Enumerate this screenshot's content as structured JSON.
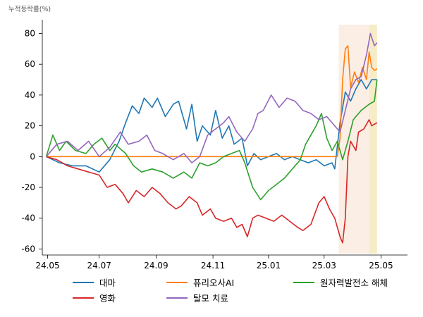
{
  "chart_data": {
    "type": "line",
    "ylabel": "누적등락률(%)",
    "ylim": [
      -63,
      88
    ],
    "yticks": [
      -60,
      -40,
      -20,
      0,
      20,
      40,
      60,
      80
    ],
    "xtick_labels": [
      "24.05",
      "24.07",
      "24.09",
      "24.11",
      "25.01",
      "25.03",
      "25.05"
    ],
    "xtick_positions": [
      1,
      40,
      83,
      126,
      168,
      210,
      253
    ],
    "xlim": [
      -3,
      273
    ],
    "legend_position": "bottom",
    "highlight_bands": [
      {
        "start": 221,
        "end": 244,
        "color": "#fbeee4"
      },
      {
        "start": 244,
        "end": 250,
        "color": "#f6ecc8"
      }
    ],
    "series": [
      {
        "name": "대마",
        "color": "#1f77b4",
        "points": [
          [
            0,
            0
          ],
          [
            10,
            -4
          ],
          [
            20,
            -6
          ],
          [
            30,
            -6
          ],
          [
            40,
            -10
          ],
          [
            48,
            -2
          ],
          [
            55,
            10
          ],
          [
            60,
            22
          ],
          [
            65,
            33
          ],
          [
            70,
            28
          ],
          [
            74,
            38
          ],
          [
            80,
            32
          ],
          [
            84,
            38
          ],
          [
            90,
            26
          ],
          [
            96,
            34
          ],
          [
            100,
            36
          ],
          [
            106,
            18
          ],
          [
            110,
            34
          ],
          [
            114,
            10
          ],
          [
            118,
            20
          ],
          [
            124,
            14
          ],
          [
            128,
            30
          ],
          [
            133,
            12
          ],
          [
            138,
            20
          ],
          [
            142,
            8
          ],
          [
            148,
            12
          ],
          [
            152,
            -6
          ],
          [
            157,
            2
          ],
          [
            162,
            -2
          ],
          [
            168,
            0
          ],
          [
            174,
            2
          ],
          [
            180,
            -2
          ],
          [
            186,
            0
          ],
          [
            192,
            -2
          ],
          [
            198,
            -4
          ],
          [
            204,
            -2
          ],
          [
            210,
            -6
          ],
          [
            216,
            -4
          ],
          [
            218,
            -8
          ],
          [
            222,
            22
          ],
          [
            226,
            42
          ],
          [
            230,
            36
          ],
          [
            234,
            44
          ],
          [
            238,
            50
          ],
          [
            242,
            44
          ],
          [
            246,
            50
          ],
          [
            250,
            50
          ]
        ]
      },
      {
        "name": "퓨리오사AI",
        "color": "#ff7f0e",
        "points": [
          [
            0,
            0
          ],
          [
            220,
            0
          ],
          [
            222,
            12
          ],
          [
            224,
            50
          ],
          [
            226,
            70
          ],
          [
            228,
            72
          ],
          [
            230,
            45
          ],
          [
            233,
            55
          ],
          [
            236,
            48
          ],
          [
            239,
            58
          ],
          [
            242,
            50
          ],
          [
            244,
            68
          ],
          [
            246,
            58
          ],
          [
            248,
            56
          ],
          [
            250,
            57
          ]
        ]
      },
      {
        "name": "원자력발전소 해체",
        "color": "#2ca02c",
        "points": [
          [
            0,
            0
          ],
          [
            5,
            14
          ],
          [
            10,
            4
          ],
          [
            15,
            10
          ],
          [
            22,
            4
          ],
          [
            30,
            2
          ],
          [
            36,
            8
          ],
          [
            42,
            12
          ],
          [
            48,
            4
          ],
          [
            52,
            8
          ],
          [
            60,
            2
          ],
          [
            66,
            -6
          ],
          [
            72,
            -10
          ],
          [
            80,
            -8
          ],
          [
            88,
            -10
          ],
          [
            96,
            -14
          ],
          [
            104,
            -10
          ],
          [
            110,
            -14
          ],
          [
            116,
            -4
          ],
          [
            122,
            -6
          ],
          [
            128,
            -4
          ],
          [
            134,
            0
          ],
          [
            140,
            2
          ],
          [
            146,
            4
          ],
          [
            150,
            -4
          ],
          [
            156,
            -20
          ],
          [
            162,
            -28
          ],
          [
            168,
            -22
          ],
          [
            174,
            -18
          ],
          [
            180,
            -14
          ],
          [
            186,
            -8
          ],
          [
            192,
            -2
          ],
          [
            196,
            8
          ],
          [
            200,
            14
          ],
          [
            204,
            20
          ],
          [
            208,
            28
          ],
          [
            212,
            12
          ],
          [
            216,
            4
          ],
          [
            220,
            10
          ],
          [
            224,
            -2
          ],
          [
            228,
            10
          ],
          [
            232,
            24
          ],
          [
            238,
            30
          ],
          [
            244,
            34
          ],
          [
            248,
            36
          ],
          [
            250,
            50
          ]
        ]
      },
      {
        "name": "영화",
        "color": "#d62728",
        "points": [
          [
            0,
            0
          ],
          [
            8,
            -2
          ],
          [
            16,
            -6
          ],
          [
            24,
            -8
          ],
          [
            32,
            -10
          ],
          [
            40,
            -12
          ],
          [
            46,
            -20
          ],
          [
            52,
            -18
          ],
          [
            58,
            -24
          ],
          [
            62,
            -30
          ],
          [
            68,
            -22
          ],
          [
            74,
            -26
          ],
          [
            80,
            -20
          ],
          [
            86,
            -24
          ],
          [
            92,
            -30
          ],
          [
            98,
            -34
          ],
          [
            102,
            -32
          ],
          [
            108,
            -26
          ],
          [
            114,
            -30
          ],
          [
            118,
            -38
          ],
          [
            124,
            -34
          ],
          [
            128,
            -40
          ],
          [
            134,
            -42
          ],
          [
            140,
            -40
          ],
          [
            144,
            -46
          ],
          [
            148,
            -44
          ],
          [
            152,
            -52
          ],
          [
            156,
            -40
          ],
          [
            160,
            -38
          ],
          [
            166,
            -40
          ],
          [
            172,
            -42
          ],
          [
            178,
            -38
          ],
          [
            184,
            -42
          ],
          [
            190,
            -46
          ],
          [
            194,
            -48
          ],
          [
            200,
            -44
          ],
          [
            206,
            -30
          ],
          [
            210,
            -26
          ],
          [
            214,
            -34
          ],
          [
            218,
            -40
          ],
          [
            222,
            -52
          ],
          [
            224,
            -56
          ],
          [
            226,
            -40
          ],
          [
            228,
            0
          ],
          [
            230,
            10
          ],
          [
            234,
            4
          ],
          [
            236,
            16
          ],
          [
            240,
            18
          ],
          [
            244,
            24
          ],
          [
            246,
            20
          ],
          [
            250,
            22
          ]
        ]
      },
      {
        "name": "탈모 치료",
        "color": "#9467bd",
        "points": [
          [
            0,
            0
          ],
          [
            8,
            8
          ],
          [
            16,
            10
          ],
          [
            24,
            4
          ],
          [
            32,
            10
          ],
          [
            40,
            0
          ],
          [
            48,
            6
          ],
          [
            56,
            16
          ],
          [
            62,
            8
          ],
          [
            70,
            10
          ],
          [
            76,
            14
          ],
          [
            82,
            4
          ],
          [
            88,
            2
          ],
          [
            96,
            -2
          ],
          [
            104,
            2
          ],
          [
            110,
            -4
          ],
          [
            116,
            0
          ],
          [
            122,
            14
          ],
          [
            128,
            18
          ],
          [
            134,
            22
          ],
          [
            138,
            26
          ],
          [
            144,
            16
          ],
          [
            150,
            10
          ],
          [
            156,
            18
          ],
          [
            160,
            28
          ],
          [
            164,
            30
          ],
          [
            170,
            40
          ],
          [
            176,
            32
          ],
          [
            182,
            38
          ],
          [
            188,
            36
          ],
          [
            194,
            30
          ],
          [
            200,
            28
          ],
          [
            206,
            24
          ],
          [
            212,
            26
          ],
          [
            218,
            20
          ],
          [
            222,
            16
          ],
          [
            226,
            30
          ],
          [
            230,
            44
          ],
          [
            234,
            50
          ],
          [
            238,
            52
          ],
          [
            242,
            66
          ],
          [
            245,
            80
          ],
          [
            248,
            72
          ],
          [
            250,
            74
          ]
        ]
      }
    ]
  }
}
